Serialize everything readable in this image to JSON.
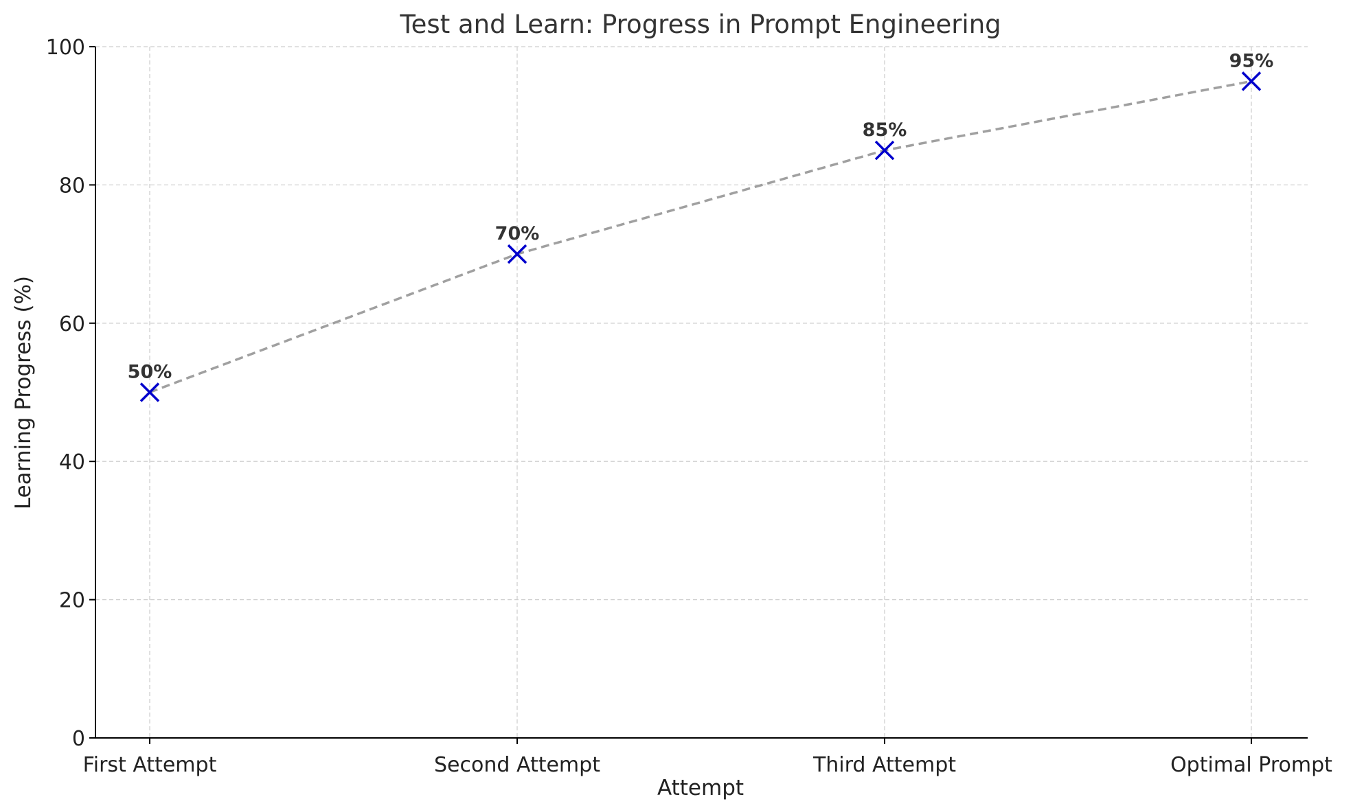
{
  "chart_data": {
    "type": "line",
    "title": "Test and Learn: Progress in Prompt Engineering",
    "xlabel": "Attempt",
    "ylabel": "Learning Progress (%)",
    "categories": [
      "First Attempt",
      "Second Attempt",
      "Third Attempt",
      "Optimal Prompt"
    ],
    "series": [
      {
        "values": [
          50,
          70,
          85,
          95
        ],
        "data_labels": [
          "50%",
          "70%",
          "85%",
          "95%"
        ],
        "line_color": "#a0a0a0",
        "line_style": "dashed",
        "marker": "x",
        "marker_color": "#0000cc"
      }
    ],
    "ylim": [
      0,
      100
    ],
    "yticks": [
      0,
      20,
      40,
      60,
      80,
      100
    ],
    "ytick_labels": [
      "0",
      "20",
      "40",
      "60",
      "80",
      "100"
    ],
    "grid": true,
    "grid_style": "dashed"
  }
}
